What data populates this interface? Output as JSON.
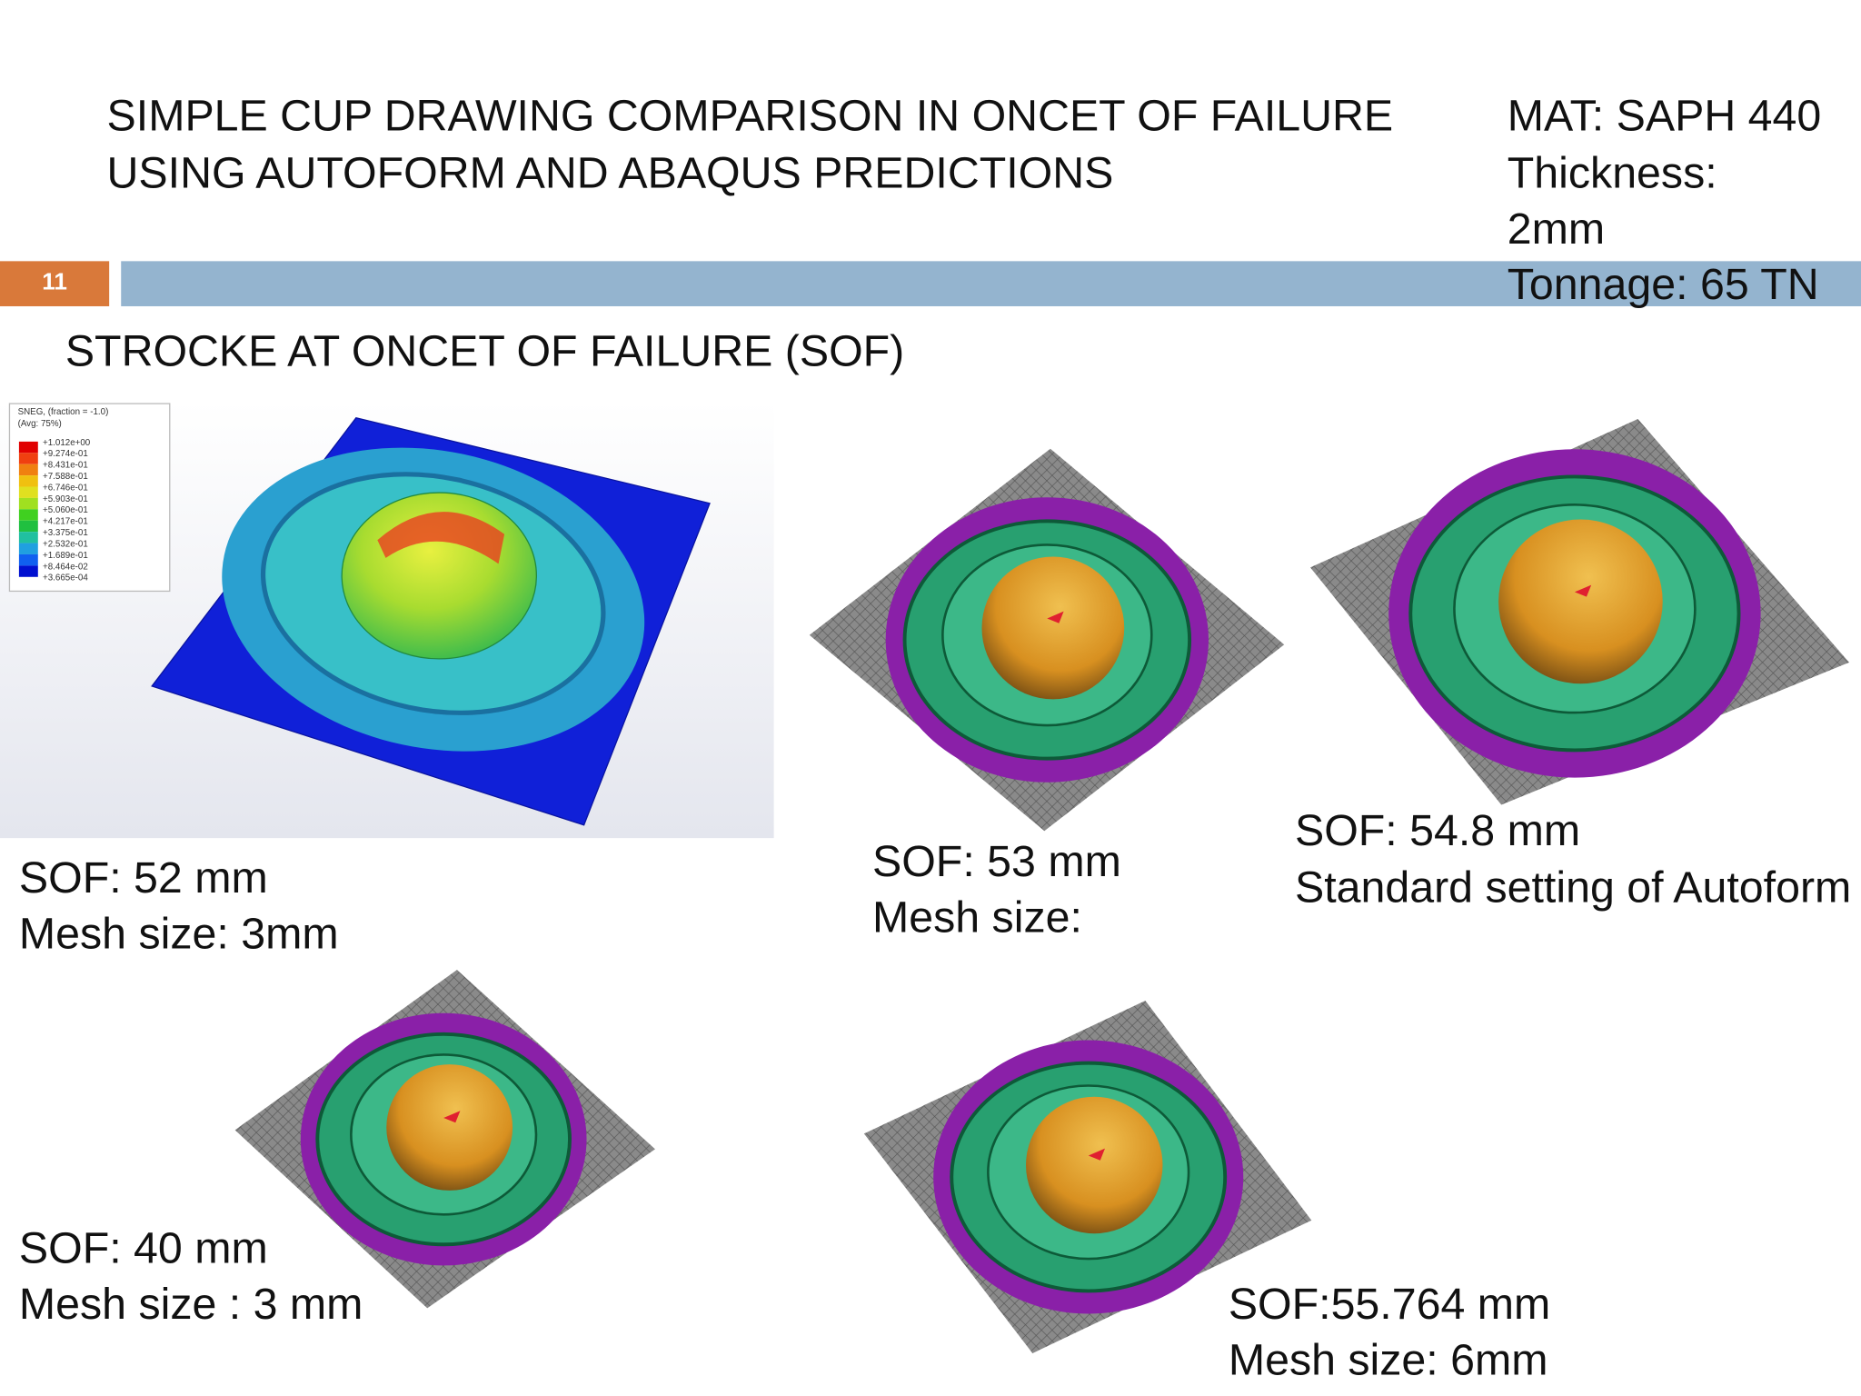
{
  "header": {
    "title_lines": [
      "SIMPLE CUP DRAWING COMPARISON IN ONCET OF FAILURE",
      "USING AUTOFORM AND ABAQUS PREDICTIONS"
    ],
    "info_lines": [
      "MAT: SAPH 440",
      "Thickness:",
      "2mm",
      "Tonnage: 65 TN"
    ],
    "slide_number": "11"
  },
  "subtitle": "STROCKE AT ONCET OF FAILURE (SOF)",
  "legend": {
    "lines": [
      "SNEG, (fraction = -1.0)",
      "(Avg: 75%)"
    ],
    "values": [
      "+1.012e+00",
      "+9.274e-01",
      "+8.431e-01",
      "+7.588e-01",
      "+6.746e-01",
      "+5.903e-01",
      "+5.060e-01",
      "+4.217e-01",
      "+3.375e-01",
      "+2.532e-01",
      "+1.689e-01",
      "+8.464e-02",
      "+3.665e-04"
    ]
  },
  "captions": [
    [
      "SOF: 52 mm",
      "Mesh size: 3mm"
    ],
    [
      "SOF: 53 mm",
      "Mesh size:"
    ],
    [
      "SOF: 54.8 mm",
      "Standard setting of Autoform"
    ],
    [
      "SOF: 40 mm",
      "Mesh size : 3 mm"
    ],
    [
      "SOF:55.764 mm",
      "Mesh size: 6mm"
    ]
  ]
}
